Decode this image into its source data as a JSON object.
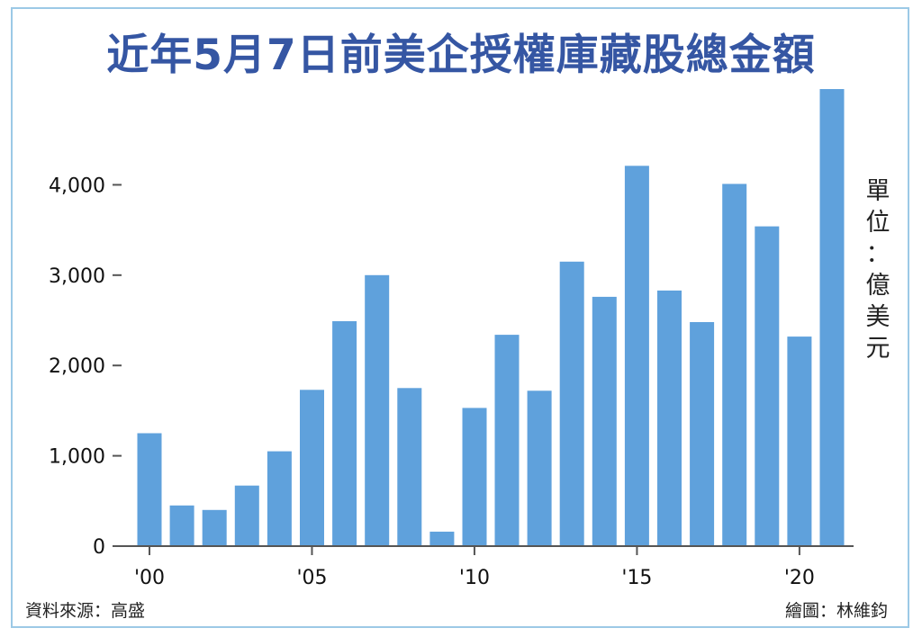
{
  "chart_data": {
    "type": "bar",
    "title": "近年5月7日前美企授權庫藏股總金額",
    "unit_label": "單位：億美元",
    "categories": [
      "2000",
      "2001",
      "2002",
      "2003",
      "2004",
      "2005",
      "2006",
      "2007",
      "2008",
      "2009",
      "2010",
      "2011",
      "2012",
      "2013",
      "2014",
      "2015",
      "2016",
      "2017",
      "2018",
      "2019",
      "2020",
      "2021"
    ],
    "values": [
      1250,
      450,
      400,
      670,
      1050,
      1730,
      2490,
      3000,
      1750,
      160,
      1530,
      2340,
      1720,
      3150,
      2760,
      4210,
      2830,
      2480,
      4010,
      3540,
      2320,
      5060
    ],
    "color": "#5fa1dc",
    "ylim": [
      0,
      5060
    ],
    "y_ticks": [
      {
        "value": 0,
        "label": "0"
      },
      {
        "value": 1000,
        "label": "1,000"
      },
      {
        "value": 2000,
        "label": "2,000"
      },
      {
        "value": 3000,
        "label": "3,000"
      },
      {
        "value": 4000,
        "label": "4,000"
      }
    ],
    "x_ticks": [
      {
        "index": 0,
        "label": "'00"
      },
      {
        "index": 5,
        "label": "'05"
      },
      {
        "index": 10,
        "label": "'10"
      },
      {
        "index": 15,
        "label": "'15"
      },
      {
        "index": 20,
        "label": "'20"
      }
    ],
    "grid": false
  },
  "footer": {
    "source": "資料來源：高盛",
    "credit": "繪圖：林維鈞"
  }
}
